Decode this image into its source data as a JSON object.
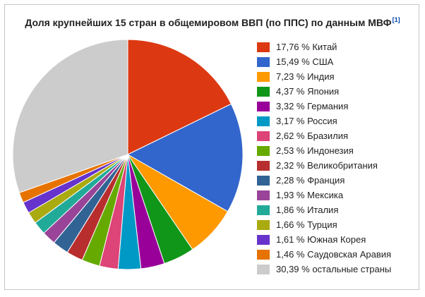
{
  "title": "Доля крупнейших 15 стран в общемировом ВВП (по ППС) по данным МВФ",
  "footnote": "[1]",
  "chart_data": {
    "type": "pie",
    "title": "Доля крупнейших 15 стран в общемировом ВВП (по ППС) по данным МВФ",
    "legend_position": "right",
    "slices": [
      {
        "label": "17,76 % Китай",
        "name": "Китай",
        "value": 17.76,
        "color": "#dc3912"
      },
      {
        "label": "15,49 % США",
        "name": "США",
        "value": 15.49,
        "color": "#3366cc"
      },
      {
        "label": "7,23 % Индия",
        "name": "Индия",
        "value": 7.23,
        "color": "#ff9900"
      },
      {
        "label": "4,37 % Япония",
        "name": "Япония",
        "value": 4.37,
        "color": "#109618"
      },
      {
        "label": "3,32 % Германия",
        "name": "Германия",
        "value": 3.32,
        "color": "#990099"
      },
      {
        "label": "3,17 % Россия",
        "name": "Россия",
        "value": 3.17,
        "color": "#0099c6"
      },
      {
        "label": "2,62 % Бразилия",
        "name": "Бразилия",
        "value": 2.62,
        "color": "#dd4477"
      },
      {
        "label": "2,53 % Индонезия",
        "name": "Индонезия",
        "value": 2.53,
        "color": "#66aa00"
      },
      {
        "label": "2,32 % Великобритания",
        "name": "Великобритания",
        "value": 2.32,
        "color": "#b82e2e"
      },
      {
        "label": "2,28 % Франция",
        "name": "Франция",
        "value": 2.28,
        "color": "#316395"
      },
      {
        "label": "1,93 % Мексика",
        "name": "Мексика",
        "value": 1.93,
        "color": "#994499"
      },
      {
        "label": "1,86 % Италия",
        "name": "Италия",
        "value": 1.86,
        "color": "#22aa99"
      },
      {
        "label": "1,66 % Турция",
        "name": "Турция",
        "value": 1.66,
        "color": "#aaaa11"
      },
      {
        "label": "1,61 % Южная Корея",
        "name": "Южная Корея",
        "value": 1.61,
        "color": "#6633cc"
      },
      {
        "label": "1,46 % Саудовская Аравия",
        "name": "Саудовская Аравия",
        "value": 1.46,
        "color": "#e67300"
      },
      {
        "label": "30,39 % остальные страны",
        "name": "остальные страны",
        "value": 30.39,
        "color": "#cccccc"
      }
    ]
  }
}
